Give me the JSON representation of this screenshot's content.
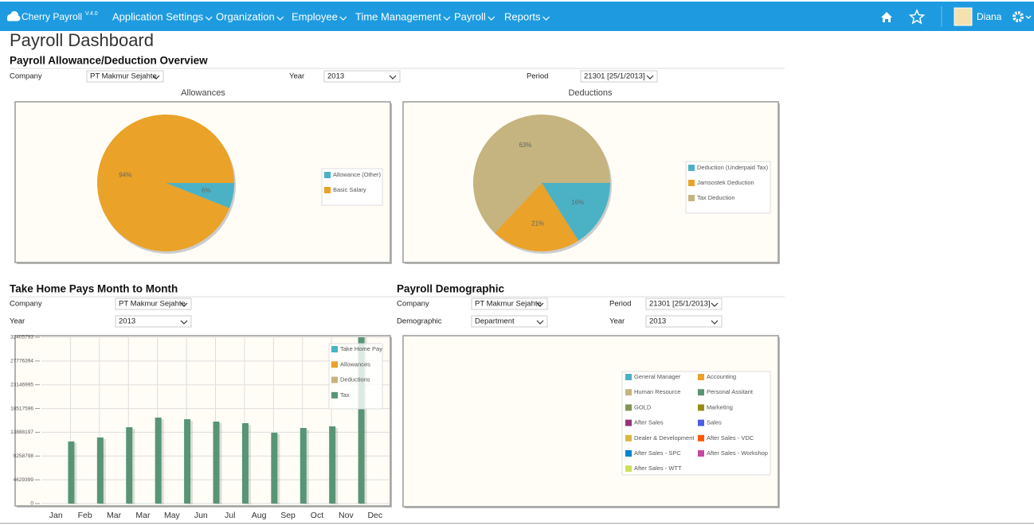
{
  "navbar": {
    "brand": "Cherry Payroll",
    "version": "V.4.0",
    "menu": [
      "Application Settings",
      "Organization",
      "Employee",
      "Time Management",
      "Payroll",
      "Reports"
    ],
    "user": "Diana"
  },
  "page_title": "Payroll Dashboard",
  "overview": {
    "title": "Payroll Allowance/Deduction Overview",
    "filters": [
      {
        "label": "Company",
        "value": "PT Makmur Sejahte"
      },
      {
        "label": "Year",
        "value": "2013"
      },
      {
        "label": "Period",
        "value": "21301 [25/1/2013]"
      }
    ]
  },
  "take_home": {
    "title": "Take Home Pays Month to Month",
    "filters": [
      {
        "label": "Company",
        "value": "PT Makmur Sejahte"
      },
      {
        "label": "Year",
        "value": "2013"
      }
    ]
  },
  "demographic": {
    "title": "Payroll Demographic",
    "filters": [
      {
        "label": "Company",
        "value": "PT Makmur Sejahte"
      },
      {
        "label": "Period",
        "value": "21301 [25/1/2013]"
      },
      {
        "label": "Demographic",
        "value": "Department"
      },
      {
        "label": "Year",
        "value": "2013"
      }
    ],
    "legend": [
      {
        "name": "General Manager",
        "color": "#4bb2c5"
      },
      {
        "name": "Accounting",
        "color": "#eaa228"
      },
      {
        "name": "Human Resource",
        "color": "#c5b47f"
      },
      {
        "name": "Personal Assitant",
        "color": "#579575"
      },
      {
        "name": "GOLD",
        "color": "#839557"
      },
      {
        "name": "Marketing",
        "color": "#958c12"
      },
      {
        "name": "After Sales",
        "color": "#953579"
      },
      {
        "name": "Sales",
        "color": "#4b5de4"
      },
      {
        "name": "Dealer & Development",
        "color": "#d8b83f"
      },
      {
        "name": "After Sales - VDC",
        "color": "#ff5800"
      },
      {
        "name": "After Sales - SPC",
        "color": "#0085cc"
      },
      {
        "name": "After Sales - Workshop",
        "color": "#c747a3"
      },
      {
        "name": "After Sales - WTT",
        "color": "#cddf54"
      }
    ]
  },
  "chart_data": [
    {
      "type": "pie",
      "title": "Allowances",
      "categories": [
        "Allowance (Other)",
        "Basic Salary"
      ],
      "values": [
        6,
        94
      ],
      "value_labels": [
        "6%",
        "94%"
      ],
      "colors": [
        "#4bb2c5",
        "#eaa228"
      ]
    },
    {
      "type": "pie",
      "title": "Deductions",
      "categories": [
        "Deduction (Underpaid Tax)",
        "Jamsostek Deduction",
        "Tax Deduction"
      ],
      "values": [
        16,
        21,
        63
      ],
      "value_labels": [
        "16%",
        "21%",
        "63%"
      ],
      "colors": [
        "#4bb2c5",
        "#eaa228",
        "#c5b47f"
      ]
    },
    {
      "type": "bar",
      "categories": [
        "Jan",
        "Feb",
        "Mar",
        "Mar",
        "May",
        "Jun",
        "Jul",
        "Aug",
        "Sep",
        "Oct",
        "Nov",
        "Dec"
      ],
      "series": [
        {
          "name": "Take Home Pay",
          "color": "#4bb2c5",
          "values": [
            null,
            null,
            null,
            null,
            null,
            null,
            null,
            null,
            null,
            null,
            null,
            null
          ]
        },
        {
          "name": "Allowances",
          "color": "#eaa228",
          "values": [
            null,
            null,
            null,
            null,
            null,
            null,
            null,
            null,
            null,
            null,
            null,
            null
          ]
        },
        {
          "name": "Deductions",
          "color": "#c5b47f",
          "values": [
            null,
            null,
            null,
            null,
            null,
            null,
            null,
            null,
            null,
            null,
            null,
            null
          ]
        },
        {
          "name": "Tax",
          "color": "#579575",
          "values": [
            12090000,
            12870000,
            14880000,
            16750000,
            16430000,
            15970000,
            15660000,
            13800000,
            14730000,
            15040000,
            34000000,
            null
          ]
        }
      ],
      "ylim": [
        0,
        32405793
      ],
      "yticks": [
        0,
        4629399,
        9258798,
        13888197,
        18517596,
        23146995,
        27776394,
        32405793
      ],
      "grid": true
    }
  ]
}
